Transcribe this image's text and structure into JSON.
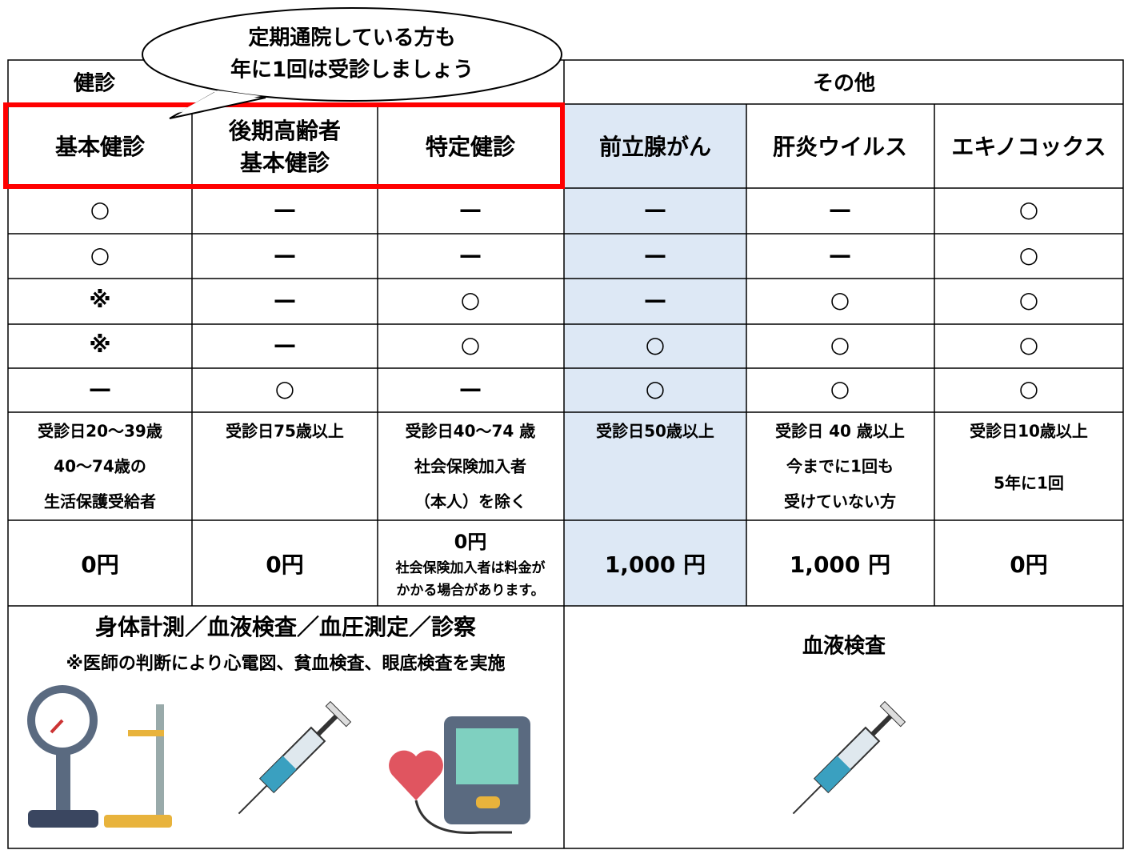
{
  "callout": {
    "lines": [
      "定期通院している方も",
      "年に1回は受診しましょう"
    ]
  },
  "table": {
    "groups": [
      "健診",
      "その他"
    ],
    "columns": [
      [
        "基本健診"
      ],
      [
        "後期高齢者",
        "基本健診"
      ],
      [
        "特定健診"
      ],
      [
        "前立腺がん"
      ],
      [
        "肝炎ウイルス"
      ],
      [
        "エキノコックス"
      ]
    ],
    "rows": [
      [
        "○",
        "—",
        "—",
        "—",
        "—",
        "○"
      ],
      [
        "○",
        "—",
        "—",
        "—",
        "—",
        "○"
      ],
      [
        "※",
        "—",
        "○",
        "—",
        "○",
        "○"
      ],
      [
        "※",
        "—",
        "○",
        "○",
        "○",
        "○"
      ],
      [
        "—",
        "○",
        "—",
        "○",
        "○",
        "○"
      ]
    ],
    "eligibility": [
      [
        "受診日20～39歳",
        "40～74歳の",
        "生活保護受給者"
      ],
      [
        "受診日75歳以上"
      ],
      [
        "受診日40～74 歳",
        "社会保険加入者",
        "（本人）を除く"
      ],
      [
        "受診日50歳以上"
      ],
      [
        "受診日 40 歳以上",
        "今までに1回も",
        "受けていない方"
      ],
      [
        "受診日10歳以上",
        "5年に1回"
      ]
    ],
    "fees": [
      {
        "main": "0円"
      },
      {
        "main": "0円"
      },
      {
        "main": "0円",
        "note": [
          "社会保険加入者は料金が",
          "かかる場合があります。"
        ]
      },
      {
        "main": "1,000 円"
      },
      {
        "main": "1,000 円"
      },
      {
        "main": "0円"
      }
    ],
    "tests": {
      "checkup": [
        "身体計測／血液検査／血圧測定／診察",
        "※医師の判断により心電図、貧血検査、眼底検査を実施"
      ],
      "other": "血液検査"
    }
  }
}
